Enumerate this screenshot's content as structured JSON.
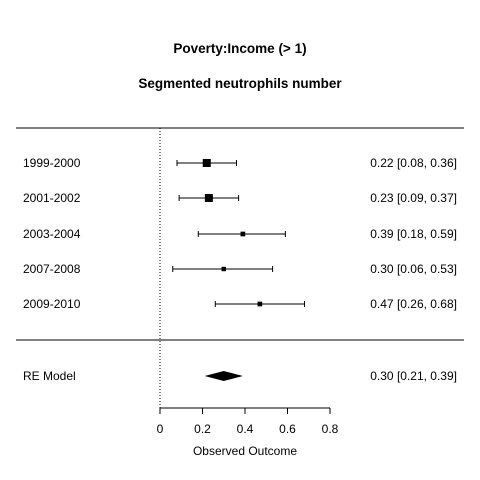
{
  "chart_data": {
    "type": "forest",
    "title": "Poverty:Income (> 1)",
    "subtitle": "Segmented neutrophils number",
    "xlabel": "Observed Outcome",
    "xlim": [
      0,
      0.8
    ],
    "xticks": [
      "0",
      "0.2",
      "0.4",
      "0.6",
      "0.8"
    ],
    "xtick_values": [
      0,
      0.2,
      0.4,
      0.6,
      0.8
    ],
    "reference_line": 0,
    "studies": [
      {
        "label": "1999-2000",
        "estimate": 0.22,
        "lower": 0.08,
        "upper": 0.36,
        "weight": 1.0,
        "text": "0.22 [0.08, 0.36]"
      },
      {
        "label": "2001-2002",
        "estimate": 0.23,
        "lower": 0.09,
        "upper": 0.37,
        "weight": 1.0,
        "text": "0.23 [0.09, 0.37]"
      },
      {
        "label": "2003-2004",
        "estimate": 0.39,
        "lower": 0.18,
        "upper": 0.59,
        "weight": 0.45,
        "text": "0.39 [0.18, 0.59]"
      },
      {
        "label": "2007-2008",
        "estimate": 0.3,
        "lower": 0.06,
        "upper": 0.53,
        "weight": 0.4,
        "text": "0.30 [0.06, 0.53]"
      },
      {
        "label": "2009-2010",
        "estimate": 0.47,
        "lower": 0.26,
        "upper": 0.68,
        "weight": 0.45,
        "text": "0.47 [0.26, 0.68]"
      }
    ],
    "summary": {
      "label": "RE Model",
      "estimate": 0.3,
      "lower": 0.21,
      "upper": 0.39,
      "text": "0.30 [0.21, 0.39]"
    }
  }
}
